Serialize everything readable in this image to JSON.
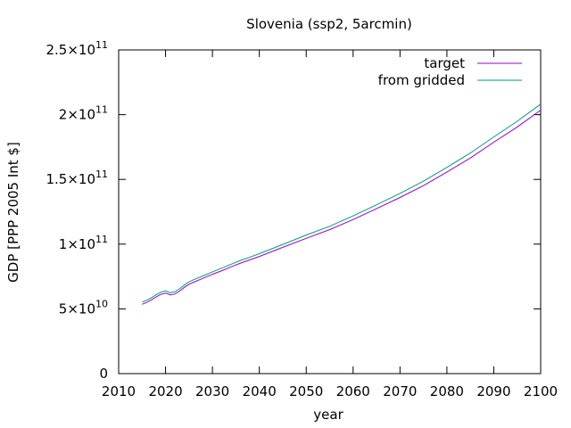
{
  "chart_data": {
    "type": "line",
    "title": "Slovenia (ssp2, 5arcmin)",
    "xlabel": "year",
    "ylabel": "GDP [PPP 2005 Int $]",
    "xlim": [
      2010,
      2100
    ],
    "ylim": [
      0,
      250000000000
    ],
    "x_ticks": [
      2010,
      2020,
      2030,
      2040,
      2050,
      2060,
      2070,
      2080,
      2090,
      2100
    ],
    "x_tick_labels": [
      "2010",
      "2020",
      "2030",
      "2040",
      "2050",
      "2060",
      "2070",
      "2080",
      "2090",
      "2100"
    ],
    "y_ticks": [
      0,
      50000000000,
      100000000000,
      150000000000,
      200000000000,
      250000000000
    ],
    "y_tick_labels": [
      {
        "mant": "0",
        "exp": ""
      },
      {
        "mant": "5×10",
        "exp": "10"
      },
      {
        "mant": "1×10",
        "exp": "11"
      },
      {
        "mant": "1.5×10",
        "exp": "11"
      },
      {
        "mant": "2×10",
        "exp": "11"
      },
      {
        "mant": "2.5×10",
        "exp": "11"
      }
    ],
    "grid": false,
    "legend_position": "top-right",
    "x": [
      2015,
      2016,
      2017,
      2018,
      2019,
      2020,
      2021,
      2022,
      2023,
      2024,
      2025,
      2026,
      2028,
      2030,
      2032,
      2034,
      2036,
      2038,
      2040,
      2045,
      2050,
      2055,
      2060,
      2065,
      2070,
      2075,
      2080,
      2085,
      2090,
      2095,
      2100
    ],
    "series": [
      {
        "name": "target",
        "color": "#9400d3",
        "values": [
          53500000000.0,
          55000000000.0,
          57000000000.0,
          59200000000.0,
          61200000000.0,
          62200000000.0,
          60800000000.0,
          61500000000.0,
          63800000000.0,
          66600000000.0,
          69000000000.0,
          70600000000.0,
          73600000000.0,
          76700000000.0,
          79500000000.0,
          82500000000.0,
          85300000000.0,
          87900000000.0,
          90500000000.0,
          97500000000.0,
          104500000000.0,
          111200000000.0,
          119000000000.0,
          127500000000.0,
          136000000000.0,
          145200000000.0,
          155700000000.0,
          166500000000.0,
          178700000000.0,
          190500000000.0,
          203500000000.0
        ]
      },
      {
        "name": "from gridded",
        "color": "#009e73",
        "values": [
          55200000000.0,
          56700000000.0,
          58700000000.0,
          60900000000.0,
          62900000000.0,
          63900000000.0,
          62500000000.0,
          63200000000.0,
          65500000000.0,
          68400000000.0,
          70800000000.0,
          72500000000.0,
          75500000000.0,
          78600000000.0,
          81500000000.0,
          84500000000.0,
          87400000000.0,
          90000000000.0,
          92600000000.0,
          99800000000.0,
          107000000000.0,
          113800000000.0,
          121800000000.0,
          130400000000.0,
          139200000000.0,
          148600000000.0,
          159300000000.0,
          170400000000.0,
          182800000000.0,
          194900000000.0,
          208200000000.0
        ]
      }
    ]
  }
}
